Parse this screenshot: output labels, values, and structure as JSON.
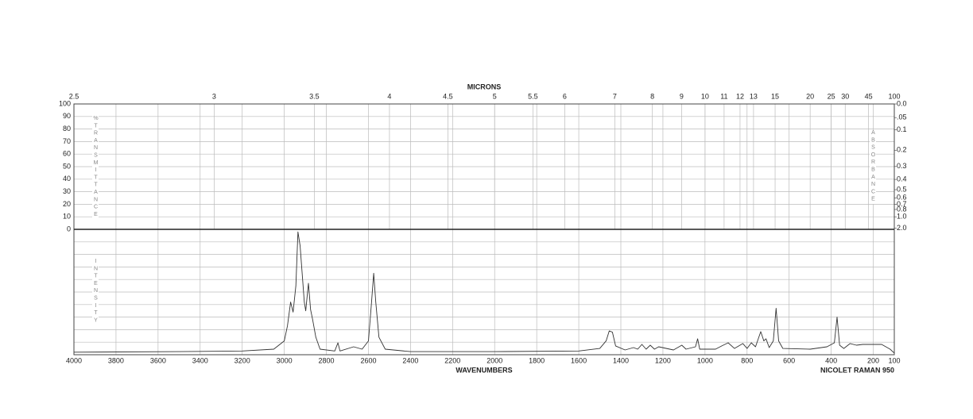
{
  "chart_data": {
    "type": "line",
    "top_axis_label": "MICRONS",
    "x_label": "WAVENUMBERS",
    "instrument": "NICOLET RAMAN 950",
    "left_axis_label": "%TRANSMITTANCE",
    "right_axis_label": "ABSORBANCE",
    "intensity_label": "INTENSITY",
    "xlim": [
      4000,
      100
    ],
    "xticks": [
      4000,
      3800,
      3600,
      3400,
      3200,
      3000,
      2800,
      2600,
      2400,
      2200,
      2000,
      1800,
      1600,
      1400,
      1200,
      1000,
      800,
      600,
      400,
      200,
      100
    ],
    "micron_ticks": [
      2.5,
      3,
      3.5,
      4,
      4.5,
      5,
      5.5,
      6,
      7,
      8,
      9,
      10,
      11,
      12,
      13,
      15,
      20,
      25,
      30,
      45,
      100
    ],
    "transmittance_lim": [
      0,
      100
    ],
    "transmittance_ticks": [
      100,
      90,
      80,
      70,
      60,
      50,
      40,
      30,
      20,
      10,
      0
    ],
    "absorbance_ticks": [
      {
        "value": 0,
        "label": "0.0"
      },
      {
        "value": 0.05,
        "label": ".05"
      },
      {
        "value": 0.1,
        "label": "0.1"
      },
      {
        "value": 0.2,
        "label": "0.2"
      },
      {
        "value": 0.3,
        "label": "0.3"
      },
      {
        "value": 0.4,
        "label": "0.4"
      },
      {
        "value": 0.5,
        "label": "0.5"
      },
      {
        "value": 0.6,
        "label": "0.6"
      },
      {
        "value": 0.7,
        "label": "0.7"
      },
      {
        "value": 0.8,
        "label": "0.8"
      },
      {
        "value": 1,
        "label": "1.0"
      },
      {
        "value": 2,
        "label": "2.0"
      }
    ],
    "ylim": [
      0,
      100
    ],
    "intensity_grid": [
      10,
      20,
      30,
      40,
      50,
      60,
      70,
      80,
      90
    ],
    "series": [
      {
        "color": "#333333",
        "x": [
          4000,
          3500,
          3200,
          3050,
          3000,
          2985,
          2970,
          2958,
          2945,
          2935,
          2925,
          2915,
          2905,
          2898,
          2885,
          2875,
          2865,
          2850,
          2830,
          2760,
          2745,
          2735,
          2670,
          2630,
          2600,
          2585,
          2575,
          2565,
          2550,
          2520,
          2400,
          2000,
          1600,
          1500,
          1470,
          1455,
          1440,
          1425,
          1380,
          1340,
          1320,
          1300,
          1280,
          1260,
          1240,
          1220,
          1150,
          1110,
          1090,
          1045,
          1035,
          1025,
          950,
          920,
          890,
          860,
          820,
          800,
          780,
          760,
          735,
          720,
          710,
          695,
          675,
          662,
          650,
          630,
          500,
          420,
          385,
          372,
          360,
          340,
          310,
          280,
          250,
          160,
          120,
          100
        ],
        "values": [
          2,
          2.5,
          3,
          4.4,
          11,
          23,
          42,
          34,
          55,
          98,
          87,
          65,
          42,
          35,
          57,
          36,
          28,
          14,
          4.4,
          3,
          9.5,
          3,
          6.3,
          4.4,
          11,
          42,
          65,
          42,
          14,
          4.4,
          2.5,
          2.5,
          3,
          5,
          11,
          19,
          18,
          7,
          3.8,
          5.7,
          4.4,
          8.2,
          4.4,
          7.6,
          4.4,
          6.3,
          3.8,
          7.6,
          4.4,
          6.3,
          12.7,
          4.4,
          4.4,
          7,
          9.5,
          5,
          8.9,
          5,
          9.5,
          6.3,
          18.4,
          11,
          12.7,
          5.7,
          11,
          37,
          11,
          5,
          4.4,
          6.3,
          9.5,
          30,
          7.6,
          5,
          8.9,
          7.6,
          8.2,
          8.2,
          4.4,
          1.3
        ]
      }
    ]
  }
}
